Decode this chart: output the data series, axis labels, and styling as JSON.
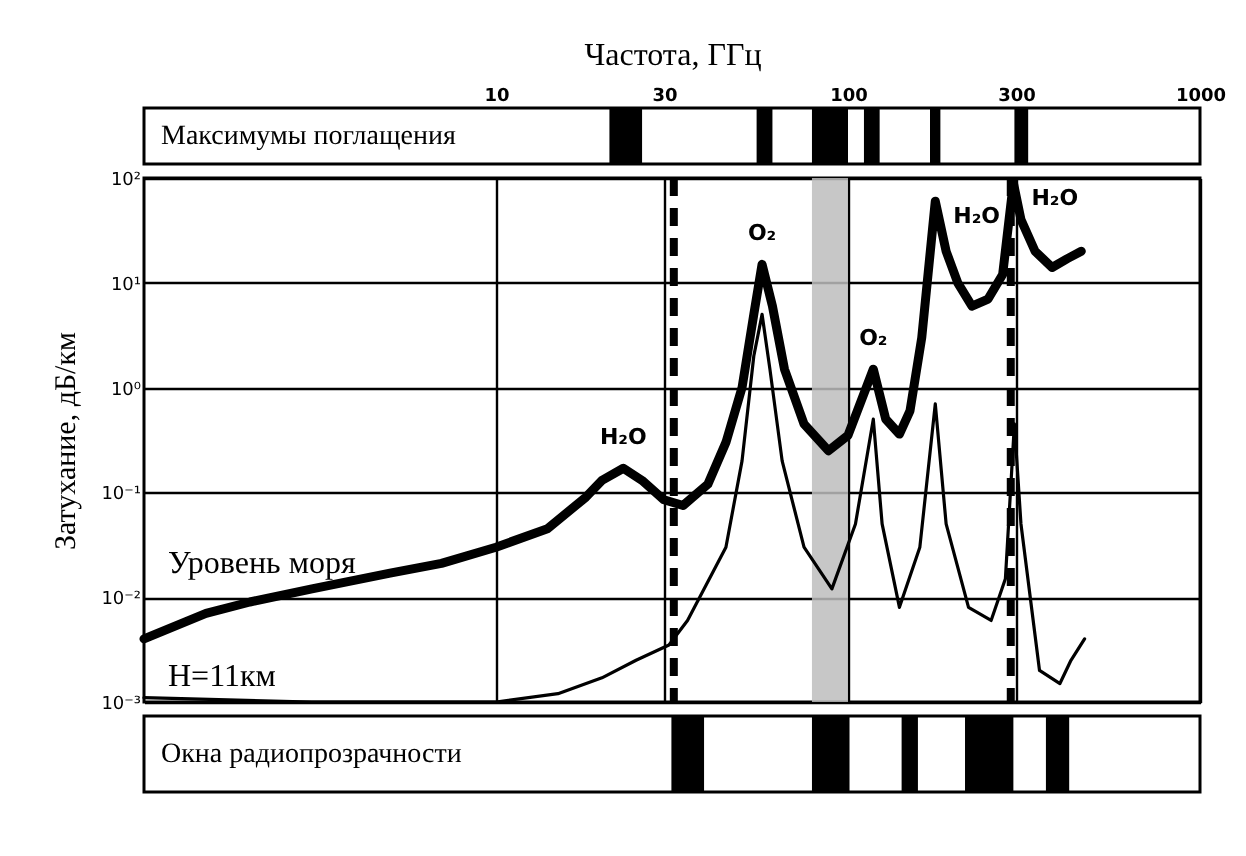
{
  "chart_data": [
    {
      "type": "bar",
      "orientation": "horizontal",
      "xlabel": "Частота, ГГц",
      "log": "x",
      "xlim": [
        1,
        1000
      ],
      "xticks": [
        10,
        30,
        100,
        300,
        1000
      ],
      "categories": [
        "Максимумы поглащения"
      ],
      "series": [
        {
          "color": "#000000",
          "base": [
            21
          ],
          "values": [
            5
          ]
        },
        {
          "color": "#000000",
          "base": [
            55
          ],
          "values": [
            6
          ]
        },
        {
          "color": "#000000",
          "base": [
            79
          ],
          "values": [
            21
          ]
        },
        {
          "color": "#000000",
          "base": [
            111
          ],
          "values": [
            12
          ]
        },
        {
          "color": "#000000",
          "base": [
            171
          ],
          "values": [
            12
          ]
        },
        {
          "color": "#000000",
          "base": [
            297
          ],
          "values": [
            28
          ]
        }
      ]
    },
    {
      "type": "line",
      "ylabel": "Затухание, дБ/км",
      "log": "xy",
      "xlim": [
        1,
        1000
      ],
      "xticks": [
        10,
        30,
        100,
        300,
        1000
      ],
      "ylim": [
        0.001,
        100
      ],
      "yticks": [
        {
          "value": 0.001,
          "label": "10⁻³"
        },
        {
          "value": 0.01,
          "label": "10⁻²"
        },
        {
          "value": 0.1,
          "label": "10⁻¹"
        },
        {
          "value": 1,
          "label": "10⁰"
        },
        {
          "value": 10,
          "label": "10¹"
        },
        {
          "value": 100,
          "label": "10²"
        }
      ],
      "tick_labels": "y",
      "grid": true,
      "series": [
        {
          "name": "Уровень моря",
          "color": "#000000",
          "x": [
            1,
            1.5,
            2,
            3,
            5,
            7,
            10,
            14,
            18,
            20,
            23,
            26,
            30,
            34,
            40,
            45,
            50,
            54,
            57,
            61,
            66,
            75,
            88,
            100,
            118,
            128,
            140,
            150,
            162,
            177,
            190,
            205,
            225,
            250,
            275,
            295,
            310,
            340,
            380,
            420,
            460
          ],
          "values": [
            0.004,
            0.007,
            0.009,
            0.012,
            0.017,
            0.021,
            0.03,
            0.045,
            0.09,
            0.13,
            0.17,
            0.13,
            0.085,
            0.075,
            0.12,
            0.3,
            1,
            5,
            15,
            6,
            1.5,
            0.45,
            0.25,
            0.35,
            1.5,
            0.5,
            0.36,
            0.6,
            3,
            60,
            20,
            10,
            6,
            7,
            12,
            90,
            40,
            20,
            14,
            17,
            20
          ]
        },
        {
          "name": "H=11км",
          "color": "#000000",
          "x": [
            1,
            3,
            10,
            15,
            20,
            25,
            31,
            35,
            45,
            50,
            54,
            57,
            60,
            65,
            75,
            90,
            105,
            118,
            125,
            140,
            160,
            177,
            190,
            220,
            255,
            280,
            297,
            310,
            350,
            400,
            430,
            470
          ],
          "values": [
            0.0011,
            0.001,
            0.001,
            0.0012,
            0.0017,
            0.0025,
            0.0035,
            0.006,
            0.03,
            0.2,
            2,
            5,
            1.5,
            0.2,
            0.03,
            0.012,
            0.05,
            0.5,
            0.05,
            0.008,
            0.03,
            0.7,
            0.05,
            0.008,
            0.006,
            0.015,
            0.45,
            0.05,
            0.002,
            0.0015,
            0.0025,
            0.004
          ]
        }
      ],
      "bands": [
        {
          "axis": "x",
          "from": 79,
          "to": 100,
          "color": "#bdbdbd"
        }
      ],
      "ref_lines": [
        {
          "axis": "x",
          "value": 32,
          "color": "#000000",
          "line_style": "dashed"
        },
        {
          "axis": "x",
          "value": 290,
          "color": "#000000",
          "line_style": "dashed"
        }
      ],
      "annotations": [
        {
          "text": "H₂O",
          "x": 23,
          "y": 0.17
        },
        {
          "text": "O₂",
          "x": 57,
          "y": 15
        },
        {
          "text": "O₂",
          "x": 118,
          "y": 1.5
        },
        {
          "text": "H₂O",
          "x": 177,
          "y": 60
        },
        {
          "text": "H₂O",
          "x": 295,
          "y": 90
        }
      ]
    },
    {
      "type": "bar",
      "orientation": "horizontal",
      "log": "x",
      "xlim": [
        1,
        1000
      ],
      "xticks": [
        10,
        30,
        100,
        300,
        1000
      ],
      "tick_labels": "y",
      "categories": [
        "Окна радиопрозрачности"
      ],
      "series": [
        {
          "color": "#000000",
          "base": [
            31.5
          ],
          "values": [
            7.5
          ]
        },
        {
          "color": "#000000",
          "base": [
            79
          ],
          "values": [
            22
          ]
        },
        {
          "color": "#000000",
          "base": [
            142
          ],
          "values": [
            16
          ]
        },
        {
          "color": "#000000",
          "base": [
            215
          ],
          "values": [
            80
          ]
        },
        {
          "color": "#000000",
          "base": [
            365
          ],
          "values": [
            60
          ]
        }
      ]
    }
  ]
}
